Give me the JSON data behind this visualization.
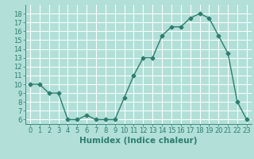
{
  "x": [
    0,
    1,
    2,
    3,
    4,
    5,
    6,
    7,
    8,
    9,
    10,
    11,
    12,
    13,
    14,
    15,
    16,
    17,
    18,
    19,
    20,
    21,
    22,
    23
  ],
  "y": [
    10,
    10,
    9,
    9,
    6,
    6,
    6.5,
    6,
    6,
    6,
    8.5,
    11,
    13,
    13,
    15.5,
    16.5,
    16.5,
    17.5,
    18,
    17.5,
    15.5,
    13.5,
    8,
    6
  ],
  "line_color": "#2e7d6e",
  "marker": "D",
  "marker_size": 2.5,
  "bg_color": "#b2e0d8",
  "grid_color": "#ffffff",
  "xlabel": "Humidex (Indice chaleur)",
  "ylim": [
    5.5,
    19
  ],
  "xlim": [
    -0.5,
    23.5
  ],
  "yticks": [
    6,
    7,
    8,
    9,
    10,
    11,
    12,
    13,
    14,
    15,
    16,
    17,
    18
  ],
  "xticks": [
    0,
    1,
    2,
    3,
    4,
    5,
    6,
    7,
    8,
    9,
    10,
    11,
    12,
    13,
    14,
    15,
    16,
    17,
    18,
    19,
    20,
    21,
    22,
    23
  ],
  "tick_label_size": 6,
  "xlabel_size": 7.5,
  "line_width": 1.0
}
